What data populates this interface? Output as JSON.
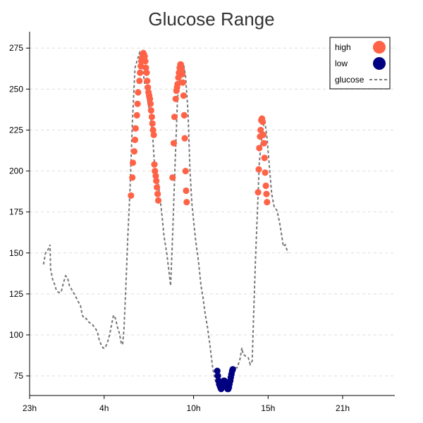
{
  "chart_data": {
    "type": "line",
    "title": "Glucose Range",
    "xlabel": "",
    "ylabel": "",
    "x_axis": {
      "unit": "hour",
      "min": 23,
      "max": 47.5,
      "ticks": [
        {
          "value": 23,
          "label": "23h"
        },
        {
          "value": 28,
          "label": "4h"
        },
        {
          "value": 34,
          "label": "10h"
        },
        {
          "value": 39,
          "label": "15h"
        },
        {
          "value": 44,
          "label": "21h"
        }
      ]
    },
    "y_axis": {
      "min": 63,
      "max": 285,
      "ticks": [
        75,
        100,
        125,
        150,
        175,
        200,
        225,
        250,
        275
      ]
    },
    "grid": "horizontal-dashed",
    "legend": {
      "placement": "top-right",
      "entries": [
        {
          "label": "high",
          "kind": "marker",
          "color": "#ff6347"
        },
        {
          "label": "low",
          "kind": "marker",
          "color": "#000080"
        },
        {
          "label": "glucose",
          "kind": "dashed-line",
          "color": "#777777"
        }
      ]
    },
    "series": [
      {
        "name": "glucose",
        "style": "dashed-line",
        "color": "#777777",
        "points": [
          [
            23.93,
            143
          ],
          [
            24.07,
            150
          ],
          [
            24.24,
            152
          ],
          [
            24.37,
            155
          ],
          [
            24.41,
            140
          ],
          [
            24.54,
            134
          ],
          [
            24.67,
            131
          ],
          [
            24.8,
            127
          ],
          [
            24.93,
            126
          ],
          [
            25.11,
            126
          ],
          [
            25.28,
            132
          ],
          [
            25.41,
            136
          ],
          [
            25.54,
            135
          ],
          [
            25.67,
            130
          ],
          [
            25.8,
            128
          ],
          [
            25.93,
            126
          ],
          [
            26.11,
            123
          ],
          [
            26.28,
            120
          ],
          [
            26.41,
            118
          ],
          [
            26.54,
            112
          ],
          [
            26.67,
            110
          ],
          [
            26.8,
            110
          ],
          [
            26.93,
            108
          ],
          [
            27.11,
            107
          ],
          [
            27.24,
            106
          ],
          [
            27.41,
            104
          ],
          [
            27.54,
            102
          ],
          [
            27.67,
            97
          ],
          [
            27.8,
            94
          ],
          [
            27.93,
            92
          ],
          [
            28.07,
            92
          ],
          [
            28.24,
            96
          ],
          [
            28.37,
            100
          ],
          [
            28.54,
            108
          ],
          [
            28.63,
            112
          ],
          [
            28.76,
            110
          ],
          [
            28.89,
            105
          ],
          [
            29.02,
            101
          ],
          [
            29.15,
            95
          ],
          [
            29.24,
            94
          ],
          [
            29.33,
            103
          ],
          [
            29.46,
            130
          ],
          [
            29.59,
            160
          ],
          [
            29.72,
            185
          ],
          [
            29.89,
            229
          ],
          [
            30.07,
            263
          ],
          [
            30.37,
            272
          ],
          [
            30.54,
            265
          ],
          [
            30.76,
            251
          ],
          [
            31.02,
            238
          ],
          [
            31.24,
            224
          ],
          [
            31.37,
            205
          ],
          [
            31.59,
            196
          ],
          [
            31.72,
            186
          ],
          [
            31.89,
            172
          ],
          [
            32.02,
            160
          ],
          [
            32.2,
            150
          ],
          [
            32.33,
            140
          ],
          [
            32.46,
            130
          ],
          [
            32.59,
            160
          ],
          [
            32.76,
            205
          ],
          [
            32.93,
            245
          ],
          [
            33.11,
            257
          ],
          [
            33.33,
            265
          ],
          [
            33.46,
            258
          ],
          [
            33.63,
            236
          ],
          [
            33.76,
            200
          ],
          [
            33.89,
            180
          ],
          [
            34.02,
            168
          ],
          [
            34.15,
            157
          ],
          [
            34.33,
            145
          ],
          [
            34.5,
            130
          ],
          [
            34.63,
            123
          ],
          [
            34.76,
            114
          ],
          [
            34.93,
            105
          ],
          [
            35.11,
            93
          ],
          [
            35.28,
            80
          ],
          [
            35.41,
            74
          ],
          [
            35.54,
            70
          ],
          [
            35.67,
            68
          ],
          [
            35.89,
            72
          ],
          [
            36.11,
            69
          ],
          [
            36.33,
            67
          ],
          [
            36.5,
            70
          ],
          [
            36.63,
            76
          ],
          [
            36.76,
            80
          ],
          [
            36.93,
            80
          ],
          [
            37.11,
            85
          ],
          [
            37.24,
            92
          ],
          [
            37.33,
            88
          ],
          [
            37.5,
            87
          ],
          [
            37.67,
            86
          ],
          [
            37.8,
            82
          ],
          [
            37.93,
            84
          ],
          [
            38.02,
            110
          ],
          [
            38.15,
            145
          ],
          [
            38.28,
            175
          ],
          [
            38.41,
            205
          ],
          [
            38.59,
            222
          ],
          [
            38.76,
            232
          ],
          [
            38.93,
            220
          ],
          [
            39.11,
            200
          ],
          [
            39.24,
            186
          ],
          [
            39.41,
            178
          ],
          [
            39.59,
            176
          ],
          [
            39.76,
            169
          ],
          [
            39.89,
            162
          ],
          [
            40.02,
            154
          ],
          [
            40.15,
            155
          ],
          [
            40.33,
            150
          ]
        ]
      },
      {
        "name": "high",
        "style": "markers",
        "color": "#ff6347",
        "points": [
          [
            29.8,
            185
          ],
          [
            29.89,
            196
          ],
          [
            29.93,
            205
          ],
          [
            30.02,
            212
          ],
          [
            30.07,
            219
          ],
          [
            30.11,
            226
          ],
          [
            30.2,
            234
          ],
          [
            30.24,
            241
          ],
          [
            30.28,
            248
          ],
          [
            30.37,
            255
          ],
          [
            30.41,
            260
          ],
          [
            30.46,
            264
          ],
          [
            30.5,
            267
          ],
          [
            30.54,
            269
          ],
          [
            30.59,
            271
          ],
          [
            30.63,
            272
          ],
          [
            30.67,
            271
          ],
          [
            30.72,
            270
          ],
          [
            30.76,
            267
          ],
          [
            30.8,
            263
          ],
          [
            30.85,
            260
          ],
          [
            30.89,
            255
          ],
          [
            30.93,
            251
          ],
          [
            30.98,
            248
          ],
          [
            31.02,
            246
          ],
          [
            31.07,
            244
          ],
          [
            31.11,
            241
          ],
          [
            31.15,
            237
          ],
          [
            31.2,
            233
          ],
          [
            31.24,
            229
          ],
          [
            31.28,
            225
          ],
          [
            31.33,
            222
          ],
          [
            31.37,
            204
          ],
          [
            31.41,
            200
          ],
          [
            31.46,
            197
          ],
          [
            31.5,
            194
          ],
          [
            31.54,
            190
          ],
          [
            31.59,
            186
          ],
          [
            31.63,
            182
          ],
          [
            32.59,
            196
          ],
          [
            32.67,
            217
          ],
          [
            32.72,
            233
          ],
          [
            32.8,
            244
          ],
          [
            32.85,
            249
          ],
          [
            32.89,
            251
          ],
          [
            32.93,
            253
          ],
          [
            32.98,
            257
          ],
          [
            33.02,
            260
          ],
          [
            33.07,
            263
          ],
          [
            33.11,
            265
          ],
          [
            33.15,
            265
          ],
          [
            33.2,
            262
          ],
          [
            33.24,
            259
          ],
          [
            33.28,
            254
          ],
          [
            33.33,
            246
          ],
          [
            33.37,
            234
          ],
          [
            33.41,
            220
          ],
          [
            33.46,
            200
          ],
          [
            33.5,
            188
          ],
          [
            33.54,
            181
          ],
          [
            38.33,
            187
          ],
          [
            38.37,
            201
          ],
          [
            38.41,
            214
          ],
          [
            38.46,
            221
          ],
          [
            38.5,
            225
          ],
          [
            38.54,
            231
          ],
          [
            38.59,
            232
          ],
          [
            38.63,
            230
          ],
          [
            38.67,
            222
          ],
          [
            38.72,
            217
          ],
          [
            38.76,
            208
          ],
          [
            38.8,
            199
          ],
          [
            38.85,
            191
          ],
          [
            38.89,
            186
          ],
          [
            38.93,
            181
          ]
        ]
      },
      {
        "name": "low",
        "style": "markers",
        "color": "#000080",
        "points": [
          [
            35.59,
            78
          ],
          [
            35.63,
            75
          ],
          [
            35.67,
            72
          ],
          [
            35.72,
            70
          ],
          [
            35.76,
            69
          ],
          [
            35.8,
            68
          ],
          [
            35.85,
            67
          ],
          [
            35.89,
            68
          ],
          [
            35.93,
            69
          ],
          [
            35.98,
            71
          ],
          [
            36.02,
            72
          ],
          [
            36.07,
            72
          ],
          [
            36.11,
            71
          ],
          [
            36.15,
            70
          ],
          [
            36.2,
            69
          ],
          [
            36.24,
            68
          ],
          [
            36.28,
            67
          ],
          [
            36.33,
            67
          ],
          [
            36.37,
            68
          ],
          [
            36.41,
            70
          ],
          [
            36.46,
            72
          ],
          [
            36.5,
            74
          ],
          [
            36.54,
            76
          ],
          [
            36.59,
            78
          ],
          [
            36.63,
            79
          ]
        ]
      }
    ]
  }
}
